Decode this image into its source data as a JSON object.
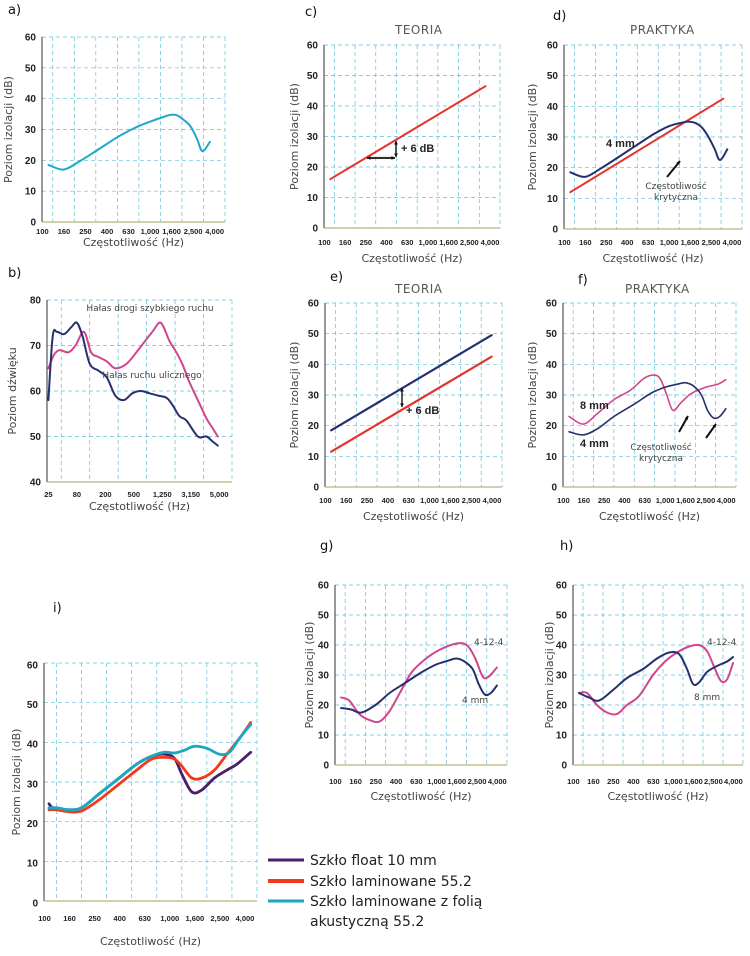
{
  "colors": {
    "cyan": "#1fa9c9",
    "red": "#e4322b",
    "navy": "#25306e",
    "magenta": "#d0458e",
    "purple": "#4a1e6b",
    "laminated_red": "#f03a1a",
    "acoustic_cyan": "#1aa7c0",
    "black": "#111111"
  },
  "chart_data": [
    {
      "id": "a",
      "panel_label": "a)",
      "type": "line",
      "title": "",
      "xlabel": "Częstotliwość (Hz)",
      "ylabel": "Poziom izolacji (dB)",
      "x_ticks": [
        "100",
        "160",
        "250",
        "400",
        "630",
        "1,000",
        "1,600",
        "2,500",
        "4,000"
      ],
      "y_ticks": [
        "0",
        "10",
        "20",
        "30",
        "40",
        "50",
        "60"
      ],
      "ylim": [
        0,
        60
      ],
      "x_scale": "tick-index",
      "grid": true,
      "series": [
        {
          "name": "",
          "color_key": "cyan",
          "x": [
            0.3,
            1.0,
            1.7,
            2.5,
            3.5,
            4.3,
            5.0,
            5.7,
            6.0,
            6.3,
            6.6,
            6.9,
            7.2,
            7.45,
            7.8
          ],
          "y": [
            18.5,
            17,
            19.5,
            23,
            27.5,
            30.5,
            32.5,
            34.2,
            34.8,
            34.5,
            33,
            31,
            27,
            23,
            26
          ]
        }
      ],
      "annotations": []
    },
    {
      "id": "b",
      "panel_label": "b)",
      "type": "line",
      "title": "",
      "xlabel": "Częstotliwość (Hz)",
      "ylabel": "Poziom dźwięku",
      "x_ticks": [
        "25",
        "80",
        "200",
        "500",
        "1,250",
        "3,150",
        "5,000"
      ],
      "y_ticks": [
        "40",
        "50",
        "60",
        "70",
        "80"
      ],
      "ylim": [
        40,
        80
      ],
      "x_scale": "tick-index",
      "grid": true,
      "series": [
        {
          "name": "Hałas drogi szybkiego ruchu",
          "color_key": "magenta",
          "x": [
            0.05,
            0.25,
            0.45,
            0.75,
            1.0,
            1.3,
            1.55,
            1.8,
            2.1,
            2.4,
            2.8,
            3.2,
            3.7,
            4.0,
            4.3,
            4.5,
            4.75,
            5.0,
            5.3,
            5.6,
            5.8,
            6.0
          ],
          "y": [
            65,
            68,
            69,
            68.5,
            70,
            73,
            68.5,
            67.5,
            66.5,
            65,
            66,
            69,
            73,
            75,
            71,
            69,
            66,
            62,
            58,
            54,
            52,
            50
          ]
        },
        {
          "name": "Hałas ruchu ulicznego",
          "color_key": "navy",
          "x": [
            0.05,
            0.2,
            0.35,
            0.6,
            0.85,
            1.05,
            1.25,
            1.5,
            1.8,
            2.1,
            2.4,
            2.7,
            3.0,
            3.3,
            3.6,
            3.9,
            4.2,
            4.4,
            4.65,
            4.9,
            5.3,
            5.6,
            5.8,
            6.0
          ],
          "y": [
            58,
            72,
            73,
            72.5,
            74,
            75,
            72,
            66,
            64.5,
            63,
            59,
            58,
            59.5,
            60,
            59.5,
            59,
            58.5,
            57,
            54.5,
            53.5,
            50,
            50,
            49,
            48
          ]
        }
      ],
      "annotations": [
        {
          "text": "Hałas drogi szybkiego ruchu",
          "color_key": "magenta"
        },
        {
          "text": "Hałas ruchu ulicznego",
          "color_key": "navy"
        }
      ]
    },
    {
      "id": "c",
      "panel_label": "c)",
      "type": "line",
      "title": "TEORIA",
      "xlabel": "Częstotliwość (Hz)",
      "ylabel": "Poziom izolacji (dB)",
      "x_ticks": [
        "100",
        "160",
        "250",
        "400",
        "630",
        "1,000",
        "1,600",
        "2,500",
        "4,000"
      ],
      "y_ticks": [
        "0",
        "10",
        "20",
        "30",
        "40",
        "50",
        "60"
      ],
      "ylim": [
        0,
        60
      ],
      "x_scale": "tick-index",
      "grid": true,
      "series": [
        {
          "name": "",
          "color_key": "red",
          "x": [
            0.3,
            7.8
          ],
          "y": [
            16,
            46.5
          ]
        }
      ],
      "annotations": [
        {
          "text": "+ 6 dB",
          "x": 3.9,
          "y": 25
        }
      ]
    },
    {
      "id": "d",
      "panel_label": "d)",
      "type": "line",
      "title": "PRAKTYKA",
      "xlabel": "Częstotliwość (Hz)",
      "ylabel": "Poziom izolacji (dB)",
      "x_ticks": [
        "100",
        "160",
        "250",
        "400",
        "630",
        "1,000",
        "1,600",
        "2,500",
        "4,000"
      ],
      "y_ticks": [
        "0",
        "10",
        "20",
        "30",
        "40",
        "50",
        "60"
      ],
      "ylim": [
        0,
        60
      ],
      "x_scale": "tick-index",
      "grid": true,
      "series": [
        {
          "name": "",
          "color_key": "red",
          "x": [
            0.3,
            7.6
          ],
          "y": [
            12,
            42.5
          ]
        },
        {
          "name": "4 mm",
          "color_key": "navy",
          "x": [
            0.3,
            1.0,
            1.7,
            2.5,
            3.5,
            4.3,
            5.0,
            5.7,
            6.0,
            6.3,
            6.6,
            6.9,
            7.2,
            7.45,
            7.8
          ],
          "y": [
            18.5,
            17,
            19.5,
            23,
            27.5,
            31,
            33.5,
            34.8,
            35,
            34.5,
            33,
            30,
            26,
            22.5,
            26
          ]
        }
      ],
      "annotations": [
        {
          "text": "4 mm"
        },
        {
          "text": "Częstotliwość krytyczna"
        }
      ]
    },
    {
      "id": "e",
      "panel_label": "e)",
      "type": "line",
      "title": "TEORIA",
      "xlabel": "Częstotliwość (Hz)",
      "ylabel": "Poziom izolacji (dB)",
      "x_ticks": [
        "100",
        "160",
        "250",
        "400",
        "630",
        "1,000",
        "1,600",
        "2,500",
        "4,000"
      ],
      "y_ticks": [
        "0",
        "10",
        "20",
        "30",
        "40",
        "50",
        "60"
      ],
      "ylim": [
        0,
        60
      ],
      "x_scale": "tick-index",
      "grid": true,
      "series": [
        {
          "name": "",
          "color_key": "navy",
          "x": [
            0.3,
            8.0
          ],
          "y": [
            18.5,
            49.5
          ]
        },
        {
          "name": "",
          "color_key": "red",
          "x": [
            0.3,
            8.0
          ],
          "y": [
            11.5,
            42.5
          ]
        }
      ],
      "annotations": [
        {
          "text": "+ 6 dB"
        }
      ]
    },
    {
      "id": "f",
      "panel_label": "f)",
      "type": "line",
      "title": "PRAKTYKA",
      "xlabel": "Częstotliwość (Hz)",
      "ylabel": "Poziom izolacji (dB)",
      "x_ticks": [
        "100",
        "160",
        "250",
        "400",
        "630",
        "1,000",
        "1,600",
        "2,500",
        "4,000"
      ],
      "y_ticks": [
        "0",
        "10",
        "20",
        "30",
        "40",
        "50",
        "60"
      ],
      "ylim": [
        0,
        60
      ],
      "x_scale": "tick-index",
      "grid": true,
      "series": [
        {
          "name": "8 mm",
          "color_key": "magenta",
          "x": [
            0.3,
            1.0,
            1.7,
            2.5,
            3.3,
            4.0,
            4.5,
            4.8,
            5.1,
            5.4,
            5.8,
            6.3,
            7.0,
            7.6,
            8.0
          ],
          "y": [
            23,
            20.5,
            24,
            28.5,
            31.5,
            35.5,
            36.5,
            35,
            30,
            25,
            27.5,
            30.5,
            32.5,
            33.5,
            35
          ]
        },
        {
          "name": "4 mm",
          "color_key": "navy",
          "x": [
            0.3,
            1.0,
            1.7,
            2.5,
            3.5,
            4.3,
            5.0,
            5.6,
            6.0,
            6.4,
            6.8,
            7.1,
            7.4,
            7.7,
            8.0
          ],
          "y": [
            18,
            17,
            19,
            23,
            27,
            30.5,
            32.5,
            33.5,
            34,
            33,
            30,
            25,
            22.5,
            23,
            25.5
          ]
        }
      ],
      "annotations": [
        {
          "text": "8 mm"
        },
        {
          "text": "4 mm"
        },
        {
          "text": "Częstotliwość krytyczna"
        }
      ]
    },
    {
      "id": "g",
      "panel_label": "g)",
      "type": "line",
      "title": "",
      "xlabel": "Częstotliwość (Hz)",
      "ylabel": "Poziom izolacji (dB)",
      "x_ticks": [
        "100",
        "160",
        "250",
        "400",
        "630",
        "1,000",
        "1,600",
        "2,500",
        "4,000"
      ],
      "y_ticks": [
        "0",
        "10",
        "20",
        "30",
        "40",
        "50",
        "60"
      ],
      "ylim": [
        0,
        60
      ],
      "x_scale": "tick-index",
      "grid": true,
      "series": [
        {
          "name": "4-12-4",
          "color_key": "magenta",
          "x": [
            0.3,
            0.7,
            1.2,
            1.7,
            2.2,
            2.7,
            3.2,
            3.8,
            4.5,
            5.2,
            6.0,
            6.5,
            6.9,
            7.3,
            7.6,
            8.0
          ],
          "y": [
            22.5,
            21.5,
            17,
            15,
            14.5,
            18,
            24,
            31,
            35.5,
            38.5,
            40.5,
            40,
            36,
            29.5,
            29.5,
            32.5
          ]
        },
        {
          "name": "4 mm",
          "color_key": "navy",
          "x": [
            0.3,
            0.8,
            1.3,
            2.0,
            2.7,
            3.5,
            4.3,
            5.0,
            5.6,
            6.0,
            6.4,
            6.8,
            7.1,
            7.4,
            7.7,
            8.0
          ],
          "y": [
            19,
            18.5,
            17.5,
            20,
            24,
            27.5,
            31,
            33.5,
            34.8,
            35.5,
            34.5,
            32,
            27,
            23.5,
            24,
            26.5
          ]
        }
      ],
      "annotations": [
        {
          "text": "4-12-4",
          "color_key": "magenta"
        },
        {
          "text": "4 mm",
          "color_key": "navy"
        }
      ]
    },
    {
      "id": "h",
      "panel_label": "h)",
      "type": "line",
      "title": "",
      "xlabel": "Częstotliwość (Hz)",
      "ylabel": "Poziom izolacji (dB)",
      "x_ticks": [
        "100",
        "160",
        "250",
        "400",
        "630",
        "1,000",
        "1,600",
        "2,500",
        "4,000"
      ],
      "y_ticks": [
        "0",
        "10",
        "20",
        "30",
        "40",
        "50",
        "60"
      ],
      "ylim": [
        0,
        60
      ],
      "x_scale": "tick-index",
      "grid": true,
      "series": [
        {
          "name": "4-12-4",
          "color_key": "magenta",
          "x": [
            0.3,
            0.7,
            1.2,
            1.7,
            2.2,
            2.7,
            3.3,
            4.0,
            4.6,
            5.2,
            5.8,
            6.3,
            6.7,
            7.1,
            7.4,
            7.7,
            8.0
          ],
          "y": [
            24,
            24,
            20,
            17.5,
            17,
            20,
            23,
            30,
            34.5,
            37.5,
            39.5,
            40,
            38,
            32,
            28,
            28.5,
            34
          ]
        },
        {
          "name": "8 mm",
          "color_key": "navy",
          "x": [
            0.3,
            0.8,
            1.3,
            2.0,
            2.7,
            3.5,
            4.2,
            4.8,
            5.3,
            5.7,
            6.0,
            6.3,
            6.7,
            7.2,
            7.7,
            8.0
          ],
          "y": [
            24,
            22.5,
            21.5,
            25,
            29,
            32,
            35.5,
            37.5,
            37,
            32,
            27,
            27.5,
            31,
            33,
            34.5,
            36
          ]
        }
      ],
      "annotations": [
        {
          "text": "4-12-4",
          "color_key": "magenta"
        },
        {
          "text": "8 mm",
          "color_key": "navy"
        }
      ]
    },
    {
      "id": "i",
      "panel_label": "i)",
      "type": "line",
      "title": "",
      "xlabel": "Częstotliwość (Hz)",
      "ylabel": "Poziom izolacji (dB)",
      "x_ticks": [
        "100",
        "160",
        "250",
        "400",
        "630",
        "1,000",
        "1,600",
        "2,500",
        "4,000"
      ],
      "y_ticks": [
        "0",
        "10",
        "20",
        "30",
        "40",
        "50",
        "60"
      ],
      "ylim": [
        0,
        60
      ],
      "x_scale": "tick-index",
      "grid": true,
      "legend_position": "bottom-right",
      "series": [
        {
          "name": "Szkło float 10 mm",
          "color_key": "purple",
          "x": [
            0.2,
            0.4,
            1.0,
            1.5,
            2.2,
            3.0,
            3.7,
            4.3,
            4.8,
            5.2,
            5.5,
            5.9,
            6.3,
            6.8,
            7.3,
            7.7,
            8.25
          ],
          "y": [
            24.5,
            23.3,
            23,
            23.5,
            27,
            31,
            34.5,
            36.5,
            37,
            36,
            32,
            27.5,
            28,
            31,
            33,
            34.5,
            37.5
          ]
        },
        {
          "name": "Szkło laminowane 55.2",
          "color_key": "laminated_red",
          "x": [
            0.2,
            0.5,
            1.0,
            1.5,
            2.2,
            3.0,
            3.7,
            4.3,
            4.8,
            5.2,
            5.5,
            5.9,
            6.3,
            6.8,
            7.3,
            7.8,
            8.25
          ],
          "y": [
            23,
            23,
            22.5,
            22.7,
            25.5,
            29.5,
            33,
            35.8,
            36.2,
            35.8,
            34,
            31,
            31,
            33,
            37,
            41,
            45
          ]
        },
        {
          "name": "Szkło laminowane z folią akustyczną 55.2",
          "color_key": "acoustic_cyan",
          "x": [
            0.2,
            0.5,
            1.0,
            1.5,
            2.2,
            3.0,
            3.7,
            4.3,
            4.8,
            5.2,
            5.6,
            6.0,
            6.5,
            7.0,
            7.4,
            7.8,
            8.25
          ],
          "y": [
            23.5,
            23.5,
            23,
            23.5,
            27,
            31,
            34.5,
            36.5,
            37.5,
            37.3,
            38,
            39,
            38.5,
            37,
            37.5,
            41,
            44.5
          ]
        }
      ],
      "legend": [
        {
          "label": "Szkło float 10 mm",
          "color_key": "purple"
        },
        {
          "label": "Szkło laminowane 55.2",
          "color_key": "laminated_red"
        },
        {
          "label_line1": "Szkło laminowane z folią",
          "label_line2": "akustyczną 55.2",
          "color_key": "acoustic_cyan"
        }
      ]
    }
  ]
}
